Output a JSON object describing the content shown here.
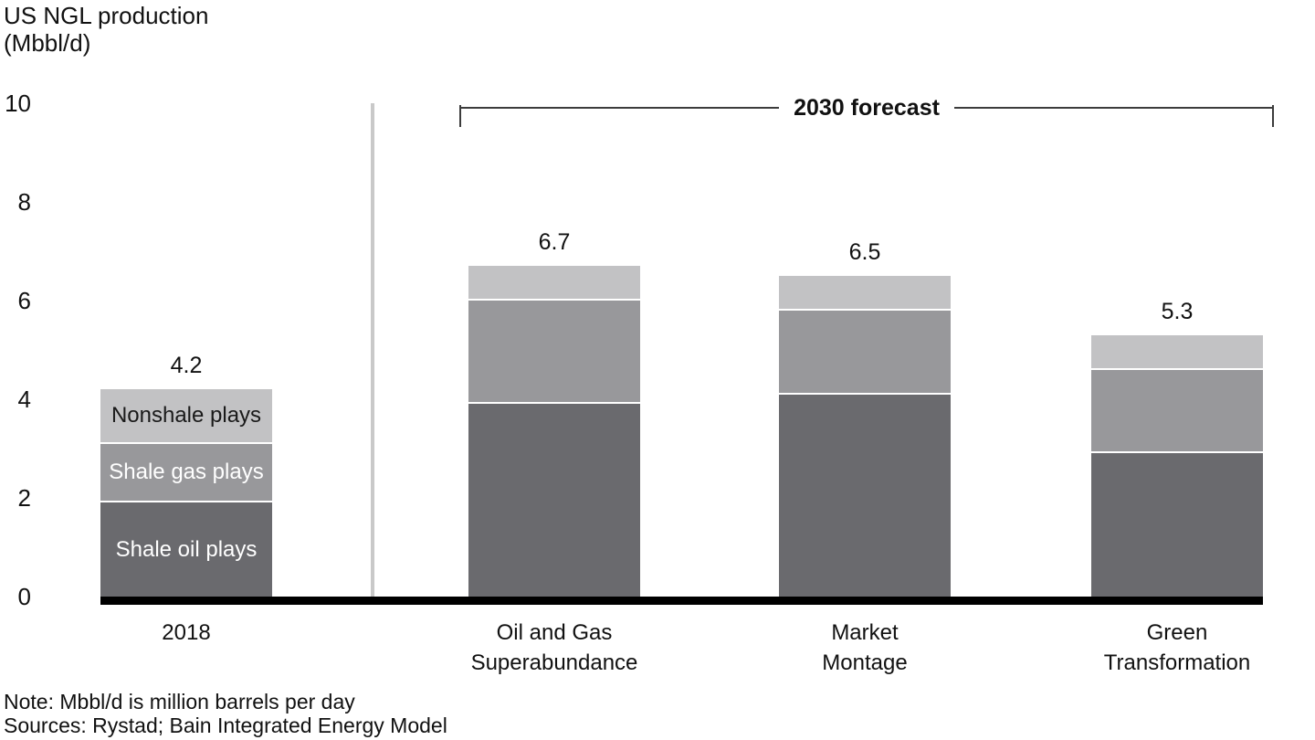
{
  "title": {
    "line1": "US NGL production",
    "line2": "(Mbbl/d)"
  },
  "notes": {
    "note": "Note: Mbbl/d is million barrels per day",
    "sources": "Sources: Rystad; Bain Integrated Energy Model"
  },
  "chart_data": {
    "type": "bar",
    "stacked": true,
    "title": "US NGL production (Mbbl/d)",
    "ylabel": "US NGL production (Mbbl/d)",
    "xlabel": "",
    "ylim": [
      0,
      10
    ],
    "yticks": [
      0,
      2,
      4,
      6,
      8,
      10
    ],
    "grid": false,
    "legend_position": "inside-first-bar",
    "annotations": {
      "bracket_label": "2030 forecast",
      "bracket_covers": [
        "Oil and Gas Superabundance",
        "Market Montage",
        "Green Transformation"
      ]
    },
    "segments_meta": [
      {
        "key": "shale_oil",
        "label": "Shale oil plays",
        "color": "#6a6a6e",
        "text_color": "#ffffff"
      },
      {
        "key": "shale_gas",
        "label": "Shale gas plays",
        "color": "#98989b",
        "text_color": "#ffffff"
      },
      {
        "key": "nonshale",
        "label": "Nonshale plays",
        "color": "#c2c2c4",
        "text_color": "#1a1a1a"
      }
    ],
    "categories": [
      "2018",
      "Oil and Gas Superabundance",
      "Market Montage",
      "Green Transformation"
    ],
    "bars": [
      {
        "category": "2018",
        "label_lines": [
          "2018"
        ],
        "total": 4.2,
        "total_label": "4.2",
        "show_segment_labels": true,
        "segments": {
          "shale_oil": 1.9,
          "shale_gas": 1.2,
          "nonshale": 1.1
        }
      },
      {
        "category": "Oil and Gas Superabundance",
        "label_lines": [
          "Oil and Gas",
          "Superabundance"
        ],
        "total": 6.7,
        "total_label": "6.7",
        "show_segment_labels": false,
        "segments": {
          "shale_oil": 3.9,
          "shale_gas": 2.1,
          "nonshale": 0.7
        }
      },
      {
        "category": "Market Montage",
        "label_lines": [
          "Market",
          "Montage"
        ],
        "total": 6.5,
        "total_label": "6.5",
        "show_segment_labels": false,
        "segments": {
          "shale_oil": 4.1,
          "shale_gas": 1.7,
          "nonshale": 0.7
        }
      },
      {
        "category": "Green Transformation",
        "label_lines": [
          "Green",
          "Transformation"
        ],
        "total": 5.3,
        "total_label": "5.3",
        "show_segment_labels": false,
        "segments": {
          "shale_oil": 2.9,
          "shale_gas": 1.7,
          "nonshale": 0.7
        }
      }
    ]
  },
  "layout_colors": {
    "baseline": "#000000",
    "divider": "#c9c9c9",
    "bracket": "#3c3c3c"
  }
}
